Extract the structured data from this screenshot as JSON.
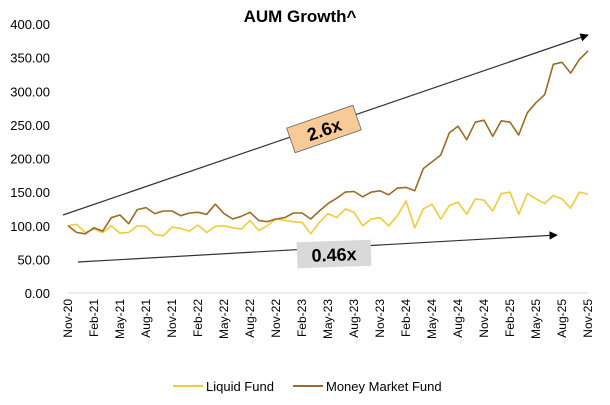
{
  "chart_data": {
    "type": "line",
    "title": "AUM Growth^",
    "xlabel": "",
    "ylabel": "",
    "ylim": [
      0,
      400
    ],
    "yticks": [
      "0.00",
      "50.00",
      "100.00",
      "150.00",
      "200.00",
      "250.00",
      "300.00",
      "350.00",
      "400.00"
    ],
    "grid": false,
    "legend_position": "bottom",
    "x_tick_labels": [
      "Nov-20",
      "Feb-21",
      "May-21",
      "Aug-21",
      "Nov-21",
      "Feb-22",
      "May-22",
      "Aug-22",
      "Nov-22",
      "Feb-23",
      "May-23",
      "Aug-23",
      "Nov-23",
      "Feb-24",
      "May-24",
      "Aug-24",
      "Nov-24",
      "Feb-25",
      "May-25",
      "Aug-25",
      "Nov-25"
    ],
    "x_tick_every_months": 3,
    "series": [
      {
        "name": "Liquid Fund",
        "color": "#F2CB3A",
        "values": [
          100,
          102,
          90,
          95,
          90,
          100,
          89,
          90,
          100,
          99,
          87,
          85,
          98,
          96,
          92,
          101,
          90,
          99,
          100,
          97,
          95,
          108,
          93,
          100,
          110,
          108,
          106,
          105,
          88,
          105,
          118,
          112,
          125,
          120,
          100,
          110,
          112,
          100,
          115,
          137,
          97,
          125,
          132,
          110,
          130,
          135,
          117,
          140,
          138,
          122,
          148,
          150,
          117,
          148,
          140,
          133,
          145,
          140,
          126,
          150,
          147
        ]
      },
      {
        "name": "Money Market Fund",
        "color": "#9C6B25",
        "values": [
          100,
          90,
          88,
          97,
          92,
          112,
          116,
          103,
          124,
          127,
          118,
          122,
          122,
          115,
          119,
          120,
          117,
          132,
          118,
          110,
          114,
          120,
          108,
          106,
          110,
          112,
          119,
          119,
          110,
          122,
          133,
          141,
          150,
          151,
          143,
          150,
          152,
          146,
          156,
          157,
          152,
          185,
          195,
          205,
          238,
          248,
          228,
          254,
          257,
          233,
          256,
          254,
          235,
          268,
          283,
          295,
          340,
          343,
          327,
          347,
          360
        ]
      }
    ],
    "annotations": [
      {
        "text": "2.6x",
        "fill": "#F8CB96",
        "applies_to": "Money Market Fund"
      },
      {
        "text": "0.46x",
        "fill": "#D9D9D9",
        "applies_to": "Liquid Fund"
      }
    ]
  }
}
